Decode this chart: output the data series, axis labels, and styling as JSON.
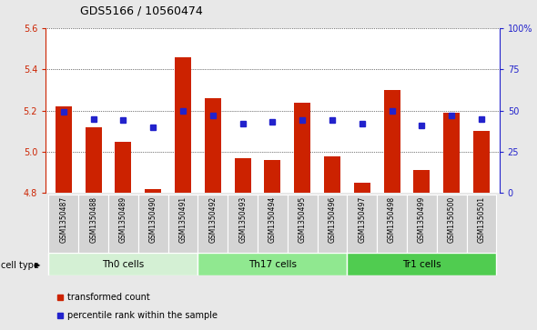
{
  "title": "GDS5166 / 10560474",
  "samples": [
    "GSM1350487",
    "GSM1350488",
    "GSM1350489",
    "GSM1350490",
    "GSM1350491",
    "GSM1350492",
    "GSM1350493",
    "GSM1350494",
    "GSM1350495",
    "GSM1350496",
    "GSM1350497",
    "GSM1350498",
    "GSM1350499",
    "GSM1350500",
    "GSM1350501"
  ],
  "red_values": [
    5.22,
    5.12,
    5.05,
    4.82,
    5.46,
    5.26,
    4.97,
    4.96,
    5.24,
    4.98,
    4.85,
    5.3,
    4.91,
    5.19,
    5.1
  ],
  "blue_values": [
    49,
    45,
    44,
    40,
    50,
    47,
    42,
    43,
    44,
    44,
    42,
    50,
    41,
    47,
    45
  ],
  "groups": [
    {
      "label": "Th0 cells",
      "start": 0,
      "end": 5
    },
    {
      "label": "Th17 cells",
      "start": 5,
      "end": 10
    },
    {
      "label": "Tr1 cells",
      "start": 10,
      "end": 15
    }
  ],
  "group_colors": [
    "#d4f0d4",
    "#90e890",
    "#50cc50"
  ],
  "ylim_left": [
    4.8,
    5.6
  ],
  "ylim_right": [
    0,
    100
  ],
  "yticks_left": [
    4.8,
    5.0,
    5.2,
    5.4,
    5.6
  ],
  "yticks_right": [
    0,
    25,
    50,
    75,
    100
  ],
  "ytick_labels_right": [
    "0",
    "25",
    "50",
    "75",
    "100%"
  ],
  "bar_color": "#cc2200",
  "dot_color": "#2222cc",
  "bar_width": 0.55,
  "background_color": "#e8e8e8",
  "plot_background": "#ffffff",
  "cell_type_label": "cell type",
  "legend_tc": "transformed count",
  "legend_pr": "percentile rank within the sample",
  "title_fontsize": 9,
  "tick_fontsize": 7,
  "label_fontsize": 7,
  "sample_fontsize": 5.5,
  "group_fontsize": 7.5
}
